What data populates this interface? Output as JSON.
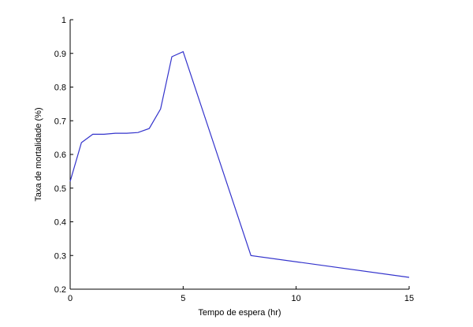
{
  "chart_data": {
    "type": "line",
    "title": "",
    "xlabel": "Tempo de espera (hr)",
    "ylabel": "Taxa de mortalidade (%)",
    "xlim": [
      0,
      15
    ],
    "ylim": [
      0.2,
      1
    ],
    "xticks": [
      0,
      5,
      10,
      15
    ],
    "xtick_labels": [
      "0",
      "5",
      "10",
      "15"
    ],
    "yticks": [
      0.2,
      0.3,
      0.4,
      0.5,
      0.6,
      0.7,
      0.8,
      0.9,
      1
    ],
    "ytick_labels": [
      "0.2",
      "0.3",
      "0.4",
      "0.5",
      "0.6",
      "0.7",
      "0.8",
      "0.9",
      "1"
    ],
    "grid": false,
    "legend": "none",
    "line_color": "#3333cc",
    "series": [
      {
        "x": [
          0,
          0.5,
          1,
          1.5,
          2,
          2.5,
          3,
          3.5,
          4,
          4.5,
          5,
          8,
          15
        ],
        "y": [
          0.52,
          0.635,
          0.66,
          0.66,
          0.663,
          0.663,
          0.665,
          0.677,
          0.735,
          0.89,
          0.905,
          0.3,
          0.235
        ]
      }
    ]
  }
}
